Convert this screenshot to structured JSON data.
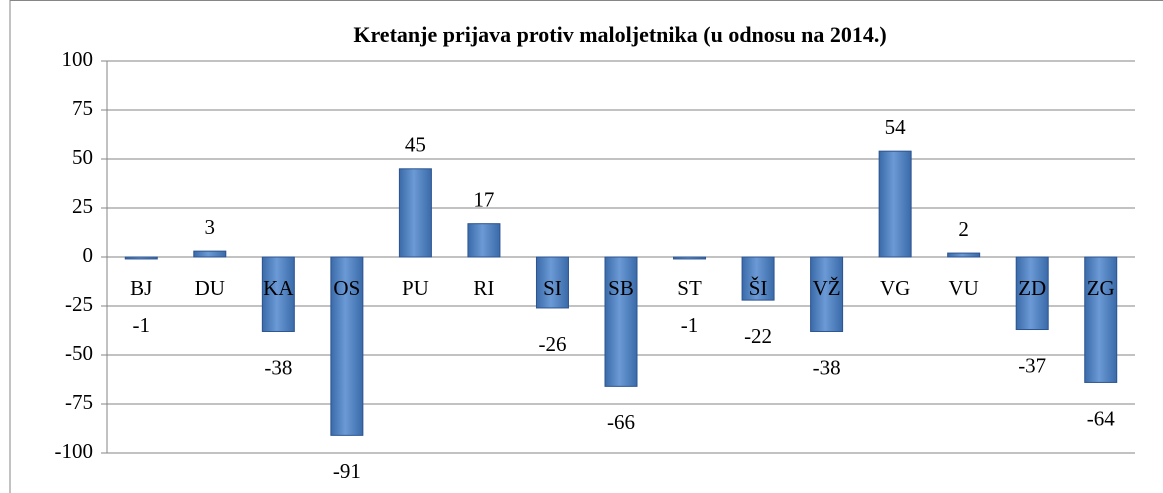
{
  "chart_data": {
    "type": "bar",
    "title": "Kretanje prijava protiv maloljetnika (u odnosu na 2014.)",
    "categories": [
      "BJ",
      "DU",
      "KA",
      "OS",
      "PU",
      "RI",
      "SI",
      "SB",
      "ST",
      "ŠI",
      "VŽ",
      "VG",
      "VU",
      "ZD",
      "ZG"
    ],
    "values": [
      -1,
      3,
      -38,
      -91,
      45,
      17,
      -26,
      -66,
      -1,
      -22,
      -38,
      54,
      2,
      -37,
      -64
    ],
    "color": "#4f81bd",
    "ylim": [
      -100,
      100
    ],
    "yticks": [
      -100,
      -75,
      -50,
      -25,
      0,
      25,
      50,
      75,
      100
    ],
    "grid": true
  }
}
